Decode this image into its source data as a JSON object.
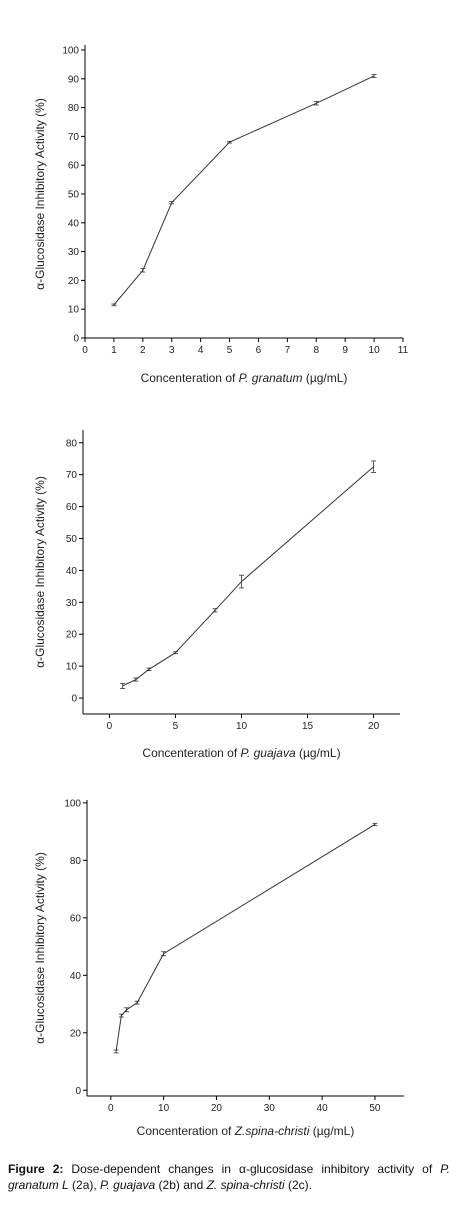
{
  "chart_data": [
    {
      "type": "line",
      "x": [
        1,
        2,
        3,
        5,
        8,
        10
      ],
      "values": [
        11.5,
        23.5,
        47,
        68,
        81.5,
        91
      ],
      "errors": [
        0.3,
        0.6,
        0.4,
        0.3,
        0.6,
        0.5
      ],
      "color": "#333333",
      "xlim": [
        0,
        11
      ],
      "xticks": [
        0,
        1,
        2,
        3,
        4,
        5,
        6,
        7,
        8,
        9,
        10,
        11
      ],
      "ylim": [
        0,
        100
      ],
      "yticks": [
        0,
        10,
        20,
        30,
        40,
        50,
        60,
        70,
        80,
        90,
        100
      ],
      "x_label": [
        "Concenteration of ",
        "P. granatum",
        " (µg/mL)"
      ],
      "y_label": "α-Glucosidase Inhibitory Activity (%)"
    },
    {
      "type": "line",
      "x": [
        1,
        2,
        3,
        5,
        8,
        10,
        20
      ],
      "values": [
        3.8,
        5.8,
        9,
        14.2,
        27.5,
        36.5,
        72.5
      ],
      "errors": [
        0.8,
        0.5,
        0.4,
        0.3,
        0.5,
        2,
        1.8
      ],
      "color": "#333333",
      "xlim": [
        -2,
        22
      ],
      "xticks": [
        0,
        5,
        10,
        15,
        20
      ],
      "ylim": [
        -5,
        84
      ],
      "yticks": [
        0,
        10,
        20,
        30,
        40,
        50,
        60,
        70,
        80
      ],
      "x_label": [
        "Concenteration of ",
        "P. guajava",
        " (µg/mL)"
      ],
      "y_label": "α-Glucosidase Inhibitory Activity (%)"
    },
    {
      "type": "line",
      "x": [
        1,
        2,
        3,
        5,
        10,
        50
      ],
      "values": [
        13.5,
        26,
        28,
        30.5,
        47.5,
        92.5
      ],
      "errors": [
        0.5,
        0.5,
        0.7,
        0.5,
        0.7,
        0.4
      ],
      "color": "#333333",
      "xlim": [
        -4.5,
        55.5
      ],
      "xticks": [
        0,
        10,
        20,
        30,
        40,
        50
      ],
      "ylim": [
        -2,
        101
      ],
      "yticks": [
        0,
        20,
        40,
        60,
        80,
        100
      ],
      "x_label": [
        "Concenteration of ",
        "Z.spina-christi",
        " (µg/mL)"
      ],
      "y_label": "α-Glucosidase Inhibitory Activity (%)"
    }
  ],
  "caption": {
    "label": "Figure 2:",
    "runs": [
      {
        "text": " Dose-dependent changes in α-glucosidase inhibitory activity of "
      },
      {
        "text": "P. granatum L",
        "italic": true
      },
      {
        "text": " (2a), "
      },
      {
        "text": "P. guajava",
        "italic": true
      },
      {
        "text": " (2b) and "
      },
      {
        "text": "Z. spina-christi",
        "italic": true
      },
      {
        "text": " (2c)."
      }
    ]
  }
}
